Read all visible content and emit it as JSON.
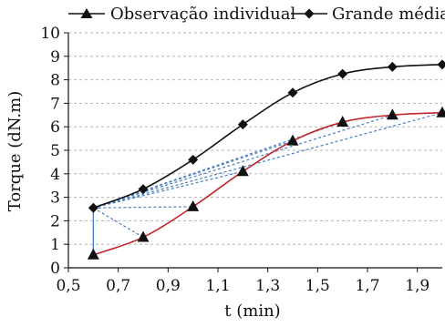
{
  "chart_data": {
    "type": "line",
    "xlabel": "t (min)",
    "ylabel": "Torque  (dN.m)",
    "xlim": [
      0.5,
      2.0
    ],
    "ylim": [
      0,
      10
    ],
    "x_ticks": [
      "0,5",
      "0,7",
      "0,9",
      "1,1",
      "1,3",
      "1,5",
      "1,7",
      "1,9"
    ],
    "x_tick_values": [
      0.5,
      0.7,
      0.9,
      1.1,
      1.3,
      1.5,
      1.7,
      1.9
    ],
    "y_ticks": [
      "0",
      "1",
      "2",
      "3",
      "4",
      "5",
      "6",
      "7",
      "8",
      "9",
      "10"
    ],
    "y_tick_values": [
      0,
      1,
      2,
      3,
      4,
      5,
      6,
      7,
      8,
      9,
      10
    ],
    "grid": {
      "horizontal": true,
      "vertical": false
    },
    "legend_position": "top",
    "series": [
      {
        "name": "Observação individual",
        "marker": "triangle",
        "line_color": "#c0272d",
        "points": [
          [
            0.6,
            0.55
          ],
          [
            0.8,
            1.3
          ],
          [
            1.0,
            2.6
          ],
          [
            1.2,
            4.1
          ],
          [
            1.4,
            5.4
          ],
          [
            1.6,
            6.2
          ],
          [
            1.8,
            6.5
          ],
          [
            2.0,
            6.6
          ]
        ]
      },
      {
        "name": "Grande média",
        "marker": "diamond",
        "line_color": "#111111",
        "points": [
          [
            0.6,
            2.55
          ],
          [
            0.8,
            3.35
          ],
          [
            1.0,
            4.6
          ],
          [
            1.2,
            6.1
          ],
          [
            1.4,
            7.45
          ],
          [
            1.6,
            8.25
          ],
          [
            1.8,
            8.55
          ],
          [
            2.0,
            8.65
          ]
        ]
      }
    ],
    "annotations": {
      "connector_color": "#4a7fc1",
      "origin": [
        0.6,
        2.55
      ],
      "solid_connector_to": [
        0.6,
        0.55
      ],
      "dashed_connectors_to": [
        [
          0.8,
          1.3
        ],
        [
          1.0,
          2.6
        ],
        [
          1.2,
          4.1
        ],
        [
          1.4,
          5.4
        ],
        [
          1.6,
          6.2
        ],
        [
          1.8,
          6.5
        ],
        [
          2.0,
          6.6
        ]
      ]
    }
  }
}
